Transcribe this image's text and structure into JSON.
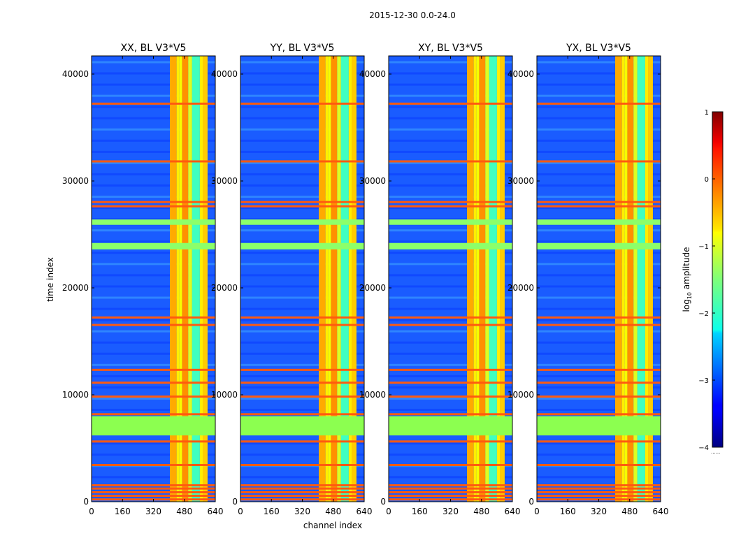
{
  "chart_data": {
    "type": "heatmap",
    "suptitle": "2015-12-30 0.0-24.0",
    "xlabel": "channel index",
    "ylabel": "time index",
    "xlim": [
      0,
      640
    ],
    "ylim": [
      0,
      41700
    ],
    "x_ticks": [
      "0",
      "160",
      "320",
      "480",
      "640"
    ],
    "y_ticks": [
      "0",
      "10000",
      "20000",
      "30000",
      "40000"
    ],
    "panels": [
      {
        "title": "XX, BL V3*V5"
      },
      {
        "title": "YY, BL V3*V5"
      },
      {
        "title": "XY, BL V3*V5"
      },
      {
        "title": "YX, BL V3*V5"
      }
    ],
    "colorbar": {
      "label_prefix": "log",
      "label_sub": "10",
      "label_suffix": " amplitude",
      "range": [
        -4,
        1
      ],
      "ticks": [
        "1",
        "0",
        "−1",
        "−2",
        "−3",
        "−4"
      ],
      "cmap": "jet",
      "extra_label": "......"
    },
    "features": {
      "high_amplitude_channel_band": [
        405,
        600
      ],
      "flagged_time_band_value": -1.2,
      "flagged_time_band": [
        6200,
        8000
      ],
      "secondary_flag_bands": [
        [
          23600,
          24200
        ],
        [
          25900,
          26400
        ]
      ],
      "rfi_time_rows": [
        180,
        520,
        850,
        1200,
        1500,
        3400,
        5600,
        8150,
        9800,
        11100,
        12300,
        16500,
        17200,
        27600,
        28000,
        31800,
        37200
      ],
      "background_level": -3
    }
  }
}
